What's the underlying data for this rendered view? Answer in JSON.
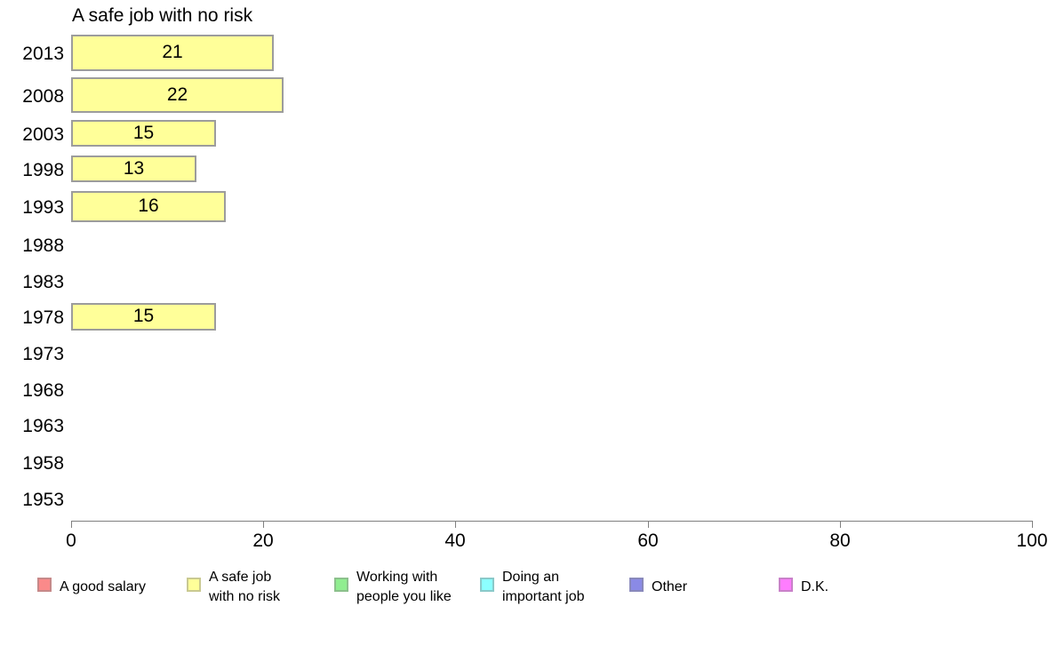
{
  "chart_data": {
    "type": "bar",
    "orientation": "horizontal",
    "title": "A safe job with no risk",
    "series_name": "A safe job with no risk",
    "categories": [
      "2013",
      "2008",
      "2003",
      "1998",
      "1993",
      "1988",
      "1983",
      "1978",
      "1973",
      "1968",
      "1963",
      "1958",
      "1953"
    ],
    "values": [
      21,
      22,
      15,
      13,
      16,
      null,
      null,
      15,
      null,
      null,
      null,
      null,
      null
    ],
    "value_labels_shown": true,
    "xlabel": "",
    "ylabel": "",
    "xlim": [
      0,
      100
    ],
    "x_ticks": [
      "0",
      "20",
      "40",
      "60",
      "80",
      "100"
    ],
    "x_tick_values": [
      0,
      20,
      40,
      60,
      80,
      100
    ],
    "grid": false,
    "bar_fill_color": "#ffff99",
    "bar_border_color": "#9c9c9c",
    "axis_color": "#808080",
    "legend_position": "bottom",
    "legend": [
      {
        "label": "A good salary",
        "lines": [
          "A good salary"
        ],
        "color": "#fa8a8a"
      },
      {
        "label": "A safe job with no risk",
        "lines": [
          "A safe job",
          "with no risk"
        ],
        "color": "#ffff99"
      },
      {
        "label": "Working with people you like",
        "lines": [
          "Working with",
          "people you like"
        ],
        "color": "#90ee90"
      },
      {
        "label": "Doing an important job",
        "lines": [
          "Doing an",
          "important job"
        ],
        "color": "#8cffff"
      },
      {
        "label": "Other",
        "lines": [
          "Other"
        ],
        "color": "#8a8ae6"
      },
      {
        "label": "D.K.",
        "lines": [
          "D.K."
        ],
        "color": "#ff7dff"
      }
    ]
  }
}
